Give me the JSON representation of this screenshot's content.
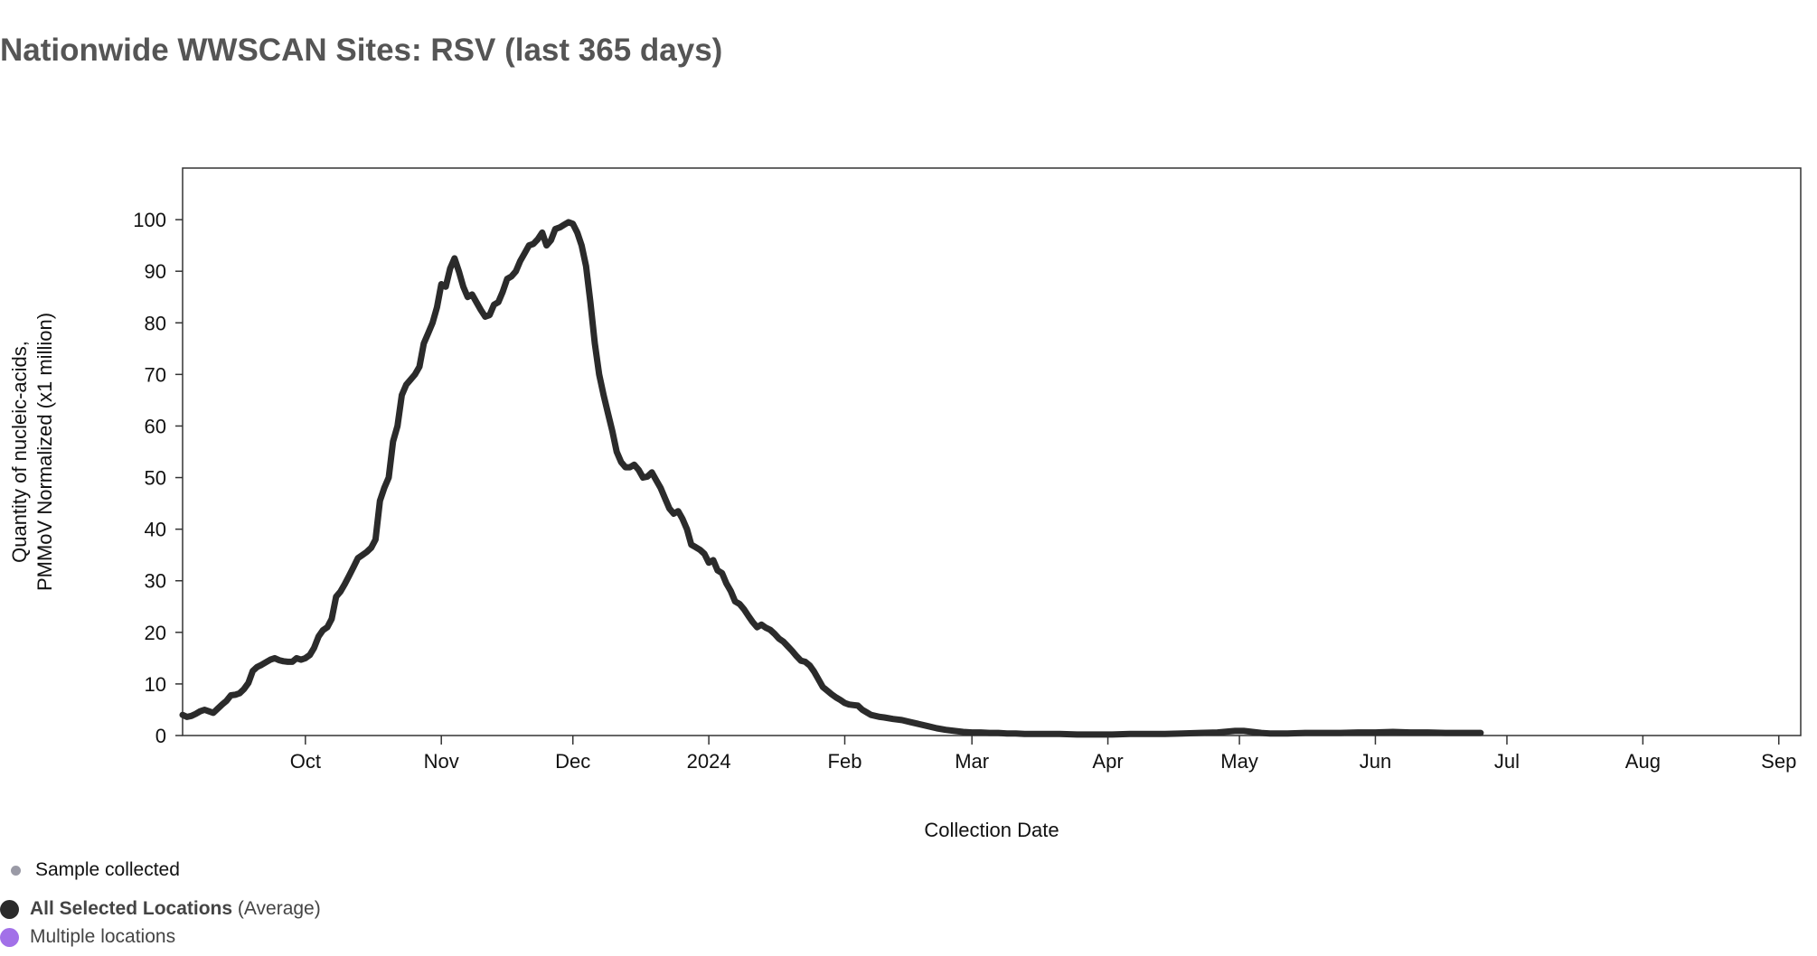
{
  "title": "Nationwide WWSCAN Sites: RSV (last 365 days)",
  "colors": {
    "line": "#2b2b2b",
    "axis": "#333333",
    "sample_dot": "#9a9aa6",
    "all_locations_dot": "#2b2b2b",
    "multiple_locations_dot": "#a270e8"
  },
  "legend": {
    "sample_label": "Sample collected",
    "all_label": "All Selected Locations",
    "all_suffix": "(Average)",
    "multiple_label": "Multiple locations"
  },
  "chart_data": {
    "type": "line",
    "title": "Nationwide WWSCAN Sites: RSV (last 365 days)",
    "xlabel": "Collection Date",
    "ylabel_lines": [
      "Quantity of nucleic-acids,",
      "PMMoV Normalized (x1 million)"
    ],
    "x_unit": "days since Sep 3, 2023",
    "xlim": [
      0,
      369
    ],
    "ylim": [
      0,
      110
    ],
    "yticks": [
      0,
      10,
      20,
      30,
      40,
      50,
      60,
      70,
      80,
      90,
      100
    ],
    "xticks": [
      {
        "label": "Oct",
        "x": 28
      },
      {
        "label": "Nov",
        "x": 59
      },
      {
        "label": "Dec",
        "x": 89
      },
      {
        "label": "2024",
        "x": 120
      },
      {
        "label": "Feb",
        "x": 151
      },
      {
        "label": "Mar",
        "x": 180
      },
      {
        "label": "Apr",
        "x": 211
      },
      {
        "label": "May",
        "x": 241
      },
      {
        "label": "Jun",
        "x": 272
      },
      {
        "label": "Jul",
        "x": 302
      },
      {
        "label": "Aug",
        "x": 333
      },
      {
        "label": "Sep",
        "x": 364
      }
    ],
    "series": [
      {
        "name": "All Selected Locations (Average)",
        "points": [
          [
            0,
            4.0
          ],
          [
            1,
            3.6
          ],
          [
            2,
            3.8
          ],
          [
            3,
            4.2
          ],
          [
            4,
            4.7
          ],
          [
            5,
            5.0
          ],
          [
            6,
            4.7
          ],
          [
            7,
            4.4
          ],
          [
            8,
            5.2
          ],
          [
            9,
            6.0
          ],
          [
            10,
            6.7
          ],
          [
            11,
            7.8
          ],
          [
            12,
            7.9
          ],
          [
            13,
            8.2
          ],
          [
            14,
            9.0
          ],
          [
            15,
            10.2
          ],
          [
            16,
            12.5
          ],
          [
            17,
            13.3
          ],
          [
            18,
            13.7
          ],
          [
            19,
            14.2
          ],
          [
            20,
            14.7
          ],
          [
            21,
            15.0
          ],
          [
            22,
            14.6
          ],
          [
            23,
            14.4
          ],
          [
            24,
            14.3
          ],
          [
            25,
            14.3
          ],
          [
            26,
            15.0
          ],
          [
            27,
            14.7
          ],
          [
            28,
            15.0
          ],
          [
            29,
            15.6
          ],
          [
            30,
            17.0
          ],
          [
            31,
            19.2
          ],
          [
            32,
            20.4
          ],
          [
            33,
            21.0
          ],
          [
            34,
            22.6
          ],
          [
            35,
            26.9
          ],
          [
            36,
            27.9
          ],
          [
            37,
            29.4
          ],
          [
            38,
            31.0
          ],
          [
            39,
            32.7
          ],
          [
            40,
            34.4
          ],
          [
            41,
            35.0
          ],
          [
            42,
            35.6
          ],
          [
            43,
            36.4
          ],
          [
            44,
            38.0
          ],
          [
            45,
            45.5
          ],
          [
            46,
            48.0
          ],
          [
            47,
            50.0
          ],
          [
            48,
            57.0
          ],
          [
            49,
            60.0
          ],
          [
            50,
            66.0
          ],
          [
            51,
            68.0
          ],
          [
            52,
            69.0
          ],
          [
            53,
            70.0
          ],
          [
            54,
            71.5
          ],
          [
            55,
            76.0
          ],
          [
            56,
            78.0
          ],
          [
            57,
            80.0
          ],
          [
            58,
            83.0
          ],
          [
            59,
            87.5
          ],
          [
            60,
            87.0
          ],
          [
            61,
            90.5
          ],
          [
            62,
            92.5
          ],
          [
            63,
            90.0
          ],
          [
            64,
            87.0
          ],
          [
            65,
            85.0
          ],
          [
            66,
            85.5
          ],
          [
            67,
            84.0
          ],
          [
            68,
            82.5
          ],
          [
            69,
            81.2
          ],
          [
            70,
            81.5
          ],
          [
            71,
            83.5
          ],
          [
            72,
            84.0
          ],
          [
            73,
            86.0
          ],
          [
            74,
            88.5
          ],
          [
            75,
            89.0
          ],
          [
            76,
            90.0
          ],
          [
            77,
            92.0
          ],
          [
            78,
            93.5
          ],
          [
            79,
            95.0
          ],
          [
            80,
            95.3
          ],
          [
            81,
            96.2
          ],
          [
            82,
            97.5
          ],
          [
            83,
            95.0
          ],
          [
            84,
            96.0
          ],
          [
            85,
            98.2
          ],
          [
            86,
            98.5
          ],
          [
            87,
            99.0
          ],
          [
            88,
            99.5
          ],
          [
            89,
            99.2
          ],
          [
            90,
            97.5
          ],
          [
            91,
            95.0
          ],
          [
            92,
            91.0
          ],
          [
            93,
            84.0
          ],
          [
            94,
            76.0
          ],
          [
            95,
            70.0
          ],
          [
            96,
            66.0
          ],
          [
            97,
            62.5
          ],
          [
            98,
            59.0
          ],
          [
            99,
            55.0
          ],
          [
            100,
            53.0
          ],
          [
            101,
            52.0
          ],
          [
            102,
            52.0
          ],
          [
            103,
            52.5
          ],
          [
            104,
            51.5
          ],
          [
            105,
            50.0
          ],
          [
            106,
            50.2
          ],
          [
            107,
            51.0
          ],
          [
            108,
            49.5
          ],
          [
            109,
            48.0
          ],
          [
            110,
            46.0
          ],
          [
            111,
            44.0
          ],
          [
            112,
            43.0
          ],
          [
            113,
            43.5
          ],
          [
            114,
            42.0
          ],
          [
            115,
            40.0
          ],
          [
            116,
            37.0
          ],
          [
            117,
            36.5
          ],
          [
            118,
            36.0
          ],
          [
            119,
            35.2
          ],
          [
            120,
            33.5
          ],
          [
            121,
            34.0
          ],
          [
            122,
            32.0
          ],
          [
            123,
            31.5
          ],
          [
            124,
            29.5
          ],
          [
            125,
            28.0
          ],
          [
            126,
            26.0
          ],
          [
            127,
            25.5
          ],
          [
            128,
            24.5
          ],
          [
            129,
            23.2
          ],
          [
            130,
            22.0
          ],
          [
            131,
            21.0
          ],
          [
            132,
            21.5
          ],
          [
            133,
            20.9
          ],
          [
            134,
            20.5
          ],
          [
            135,
            19.7
          ],
          [
            136,
            18.8
          ],
          [
            137,
            18.2
          ],
          [
            138,
            17.3
          ],
          [
            139,
            16.4
          ],
          [
            140,
            15.4
          ],
          [
            141,
            14.5
          ],
          [
            142,
            14.3
          ],
          [
            143,
            13.6
          ],
          [
            144,
            12.4
          ],
          [
            145,
            10.9
          ],
          [
            146,
            9.4
          ],
          [
            147,
            8.7
          ],
          [
            148,
            8.0
          ],
          [
            149,
            7.4
          ],
          [
            150,
            6.9
          ],
          [
            151,
            6.3
          ],
          [
            152,
            6.0
          ],
          [
            153,
            5.9
          ],
          [
            154,
            5.8
          ],
          [
            155,
            5.0
          ],
          [
            156,
            4.5
          ],
          [
            157,
            4.0
          ],
          [
            158,
            3.8
          ],
          [
            159,
            3.6
          ],
          [
            160,
            3.5
          ],
          [
            162,
            3.2
          ],
          [
            164,
            3.0
          ],
          [
            166,
            2.6
          ],
          [
            168,
            2.2
          ],
          [
            170,
            1.8
          ],
          [
            172,
            1.4
          ],
          [
            174,
            1.1
          ],
          [
            176,
            0.9
          ],
          [
            178,
            0.7
          ],
          [
            180,
            0.6
          ],
          [
            182,
            0.6
          ],
          [
            184,
            0.5
          ],
          [
            186,
            0.5
          ],
          [
            188,
            0.4
          ],
          [
            190,
            0.4
          ],
          [
            192,
            0.3
          ],
          [
            194,
            0.3
          ],
          [
            196,
            0.3
          ],
          [
            198,
            0.3
          ],
          [
            200,
            0.3
          ],
          [
            204,
            0.2
          ],
          [
            208,
            0.2
          ],
          [
            212,
            0.2
          ],
          [
            216,
            0.3
          ],
          [
            220,
            0.3
          ],
          [
            224,
            0.3
          ],
          [
            228,
            0.4
          ],
          [
            232,
            0.5
          ],
          [
            236,
            0.6
          ],
          [
            240,
            0.9
          ],
          [
            242,
            0.9
          ],
          [
            244,
            0.7
          ],
          [
            246,
            0.5
          ],
          [
            248,
            0.4
          ],
          [
            252,
            0.4
          ],
          [
            256,
            0.5
          ],
          [
            260,
            0.5
          ],
          [
            264,
            0.5
          ],
          [
            268,
            0.6
          ],
          [
            272,
            0.6
          ],
          [
            276,
            0.7
          ],
          [
            280,
            0.6
          ],
          [
            284,
            0.6
          ],
          [
            288,
            0.5
          ],
          [
            292,
            0.5
          ],
          [
            296,
            0.5
          ]
        ]
      }
    ]
  }
}
